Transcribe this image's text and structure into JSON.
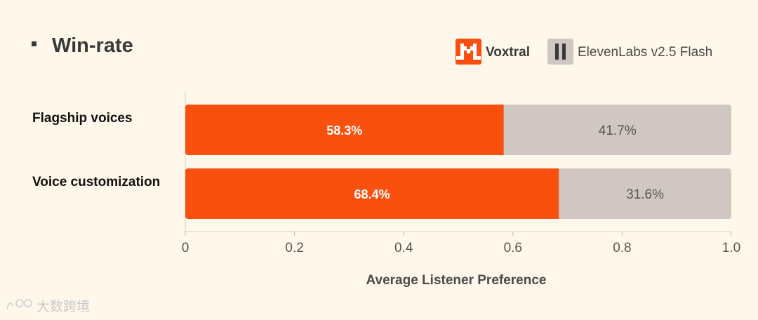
{
  "chart_data": {
    "type": "bar",
    "orientation": "horizontal",
    "stacked": true,
    "title": "Win-rate",
    "categories": [
      "Flagship voices",
      "Voice customization"
    ],
    "series": [
      {
        "name": "Voxtral",
        "values": [
          0.583,
          0.684
        ],
        "labels": [
          "58.3%",
          "68.4%"
        ],
        "color": "#fa500f"
      },
      {
        "name": "ElevenLabs v2.5 Flash",
        "values": [
          0.417,
          0.316
        ],
        "labels": [
          "41.7%",
          "31.6%"
        ],
        "color": "#d0c7c2"
      }
    ],
    "xlabel": "Average Listener Preference",
    "ylabel": "",
    "xlim": [
      0,
      1.0
    ],
    "xticks": [
      "0",
      "0.2",
      "0.4",
      "0.6",
      "0.8",
      "1.0"
    ],
    "grid": false,
    "legend_position": "top-right"
  },
  "watermark": "大数跨境",
  "icons": {
    "title_marker": "square-bullet-icon",
    "legend_a": "mistral-logo-icon",
    "legend_b": "elevenlabs-logo-icon",
    "watermark": "brand-logo-icon"
  }
}
